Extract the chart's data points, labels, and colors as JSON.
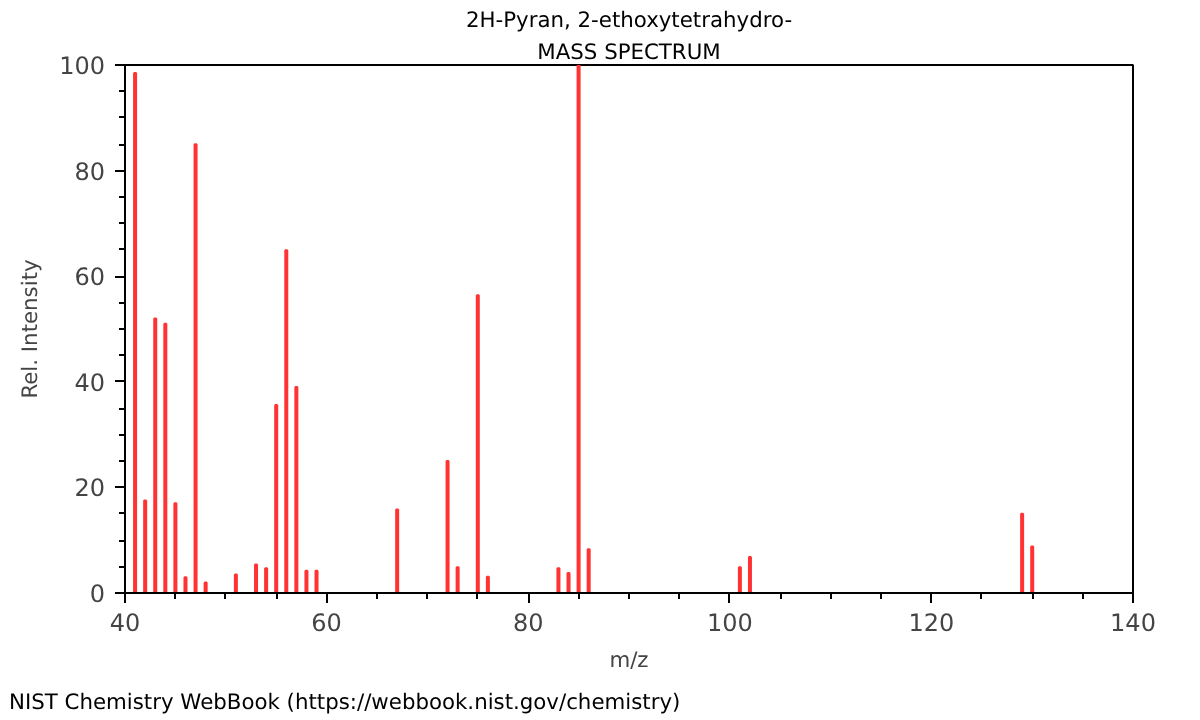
{
  "chart_data": {
    "type": "bar",
    "title": "2H-Pyran, 2-ethoxytetrahydro-",
    "subtitle": "MASS SPECTRUM",
    "xlabel": "m/z",
    "ylabel": "Rel. Intensity",
    "annotations": [
      "NIST Chemistry WebBook (https://webbook.nist.gov/chemistry)"
    ],
    "x": [
      41,
      42,
      43,
      44,
      45,
      46,
      47,
      48,
      51,
      53,
      54,
      55,
      56,
      57,
      58,
      59,
      67,
      72,
      73,
      75,
      76,
      83,
      84,
      85,
      86,
      101,
      102,
      129,
      130
    ],
    "values": [
      98.5,
      17.5,
      52,
      51,
      17,
      3,
      85,
      2,
      3.5,
      5.4,
      4.7,
      35.6,
      64.9,
      39,
      4.2,
      4.2,
      15.8,
      25,
      4.9,
      56.4,
      3.1,
      4.7,
      3.8,
      100,
      8.3,
      4.9,
      6.8,
      15,
      8.8
    ],
    "color": "#ff3333",
    "xlim": [
      40,
      140
    ],
    "xticks": [
      40,
      60,
      80,
      100,
      120,
      140
    ],
    "ylim": [
      0,
      100
    ],
    "yticks": [
      0,
      20,
      40,
      60,
      80,
      100
    ],
    "grid": false
  }
}
